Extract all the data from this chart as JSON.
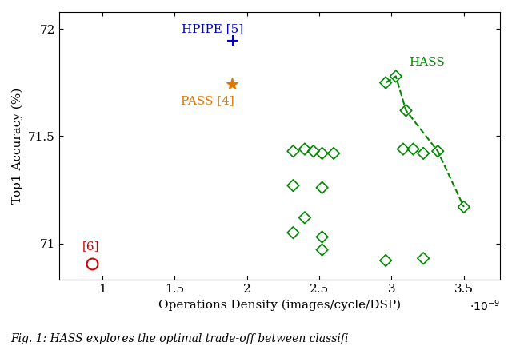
{
  "xlabel": "Operations Density (images/cycle/DSP)",
  "ylabel": "Top1 Accuracy (%)",
  "xlim": [
    0.7,
    3.75
  ],
  "ylim": [
    70.83,
    72.08
  ],
  "xticks": [
    1.0,
    1.5,
    2.0,
    2.5,
    3.0,
    3.5
  ],
  "xticklabels": [
    "1",
    "1.5",
    "2",
    "2.5",
    "3",
    "3.5"
  ],
  "yticks": [
    71.0,
    71.5,
    72.0
  ],
  "yticklabels": [
    "71",
    "71.5",
    "72"
  ],
  "scale_factor": 1e-09,
  "hpipe_x": 1.9,
  "hpipe_y": 71.945,
  "hpipe_label": "HPIPE [5]",
  "hpipe_color": "#0000cc",
  "pass_x": 1.895,
  "pass_y": 71.745,
  "pass_label": "PASS [4]",
  "pass_color": "#dd7700",
  "ref6_x": 0.93,
  "ref6_y": 70.905,
  "ref6_label": "[6]",
  "ref6_color": "#cc0000",
  "hass_label": "HASS",
  "hass_color": "#008800",
  "hass_points_x": [
    2.32,
    2.4,
    2.46,
    2.52,
    2.32,
    2.52,
    2.32,
    2.52,
    2.6,
    2.4,
    2.52,
    2.96,
    3.03,
    3.1,
    3.15,
    3.08,
    3.22,
    3.32,
    3.5,
    2.96,
    3.22
  ],
  "hass_points_y": [
    71.43,
    71.44,
    71.43,
    71.42,
    71.27,
    71.26,
    71.05,
    71.03,
    71.42,
    71.12,
    70.97,
    71.75,
    71.78,
    71.62,
    71.44,
    71.44,
    71.42,
    71.43,
    71.17,
    70.92,
    70.93
  ],
  "pareto_x": [
    2.96,
    3.03,
    3.1,
    3.32,
    3.5
  ],
  "pareto_y": [
    71.75,
    71.78,
    71.62,
    71.43,
    71.17
  ],
  "fig_caption": "Fig. 1: HASS explores the optimal trade-off between classifi"
}
